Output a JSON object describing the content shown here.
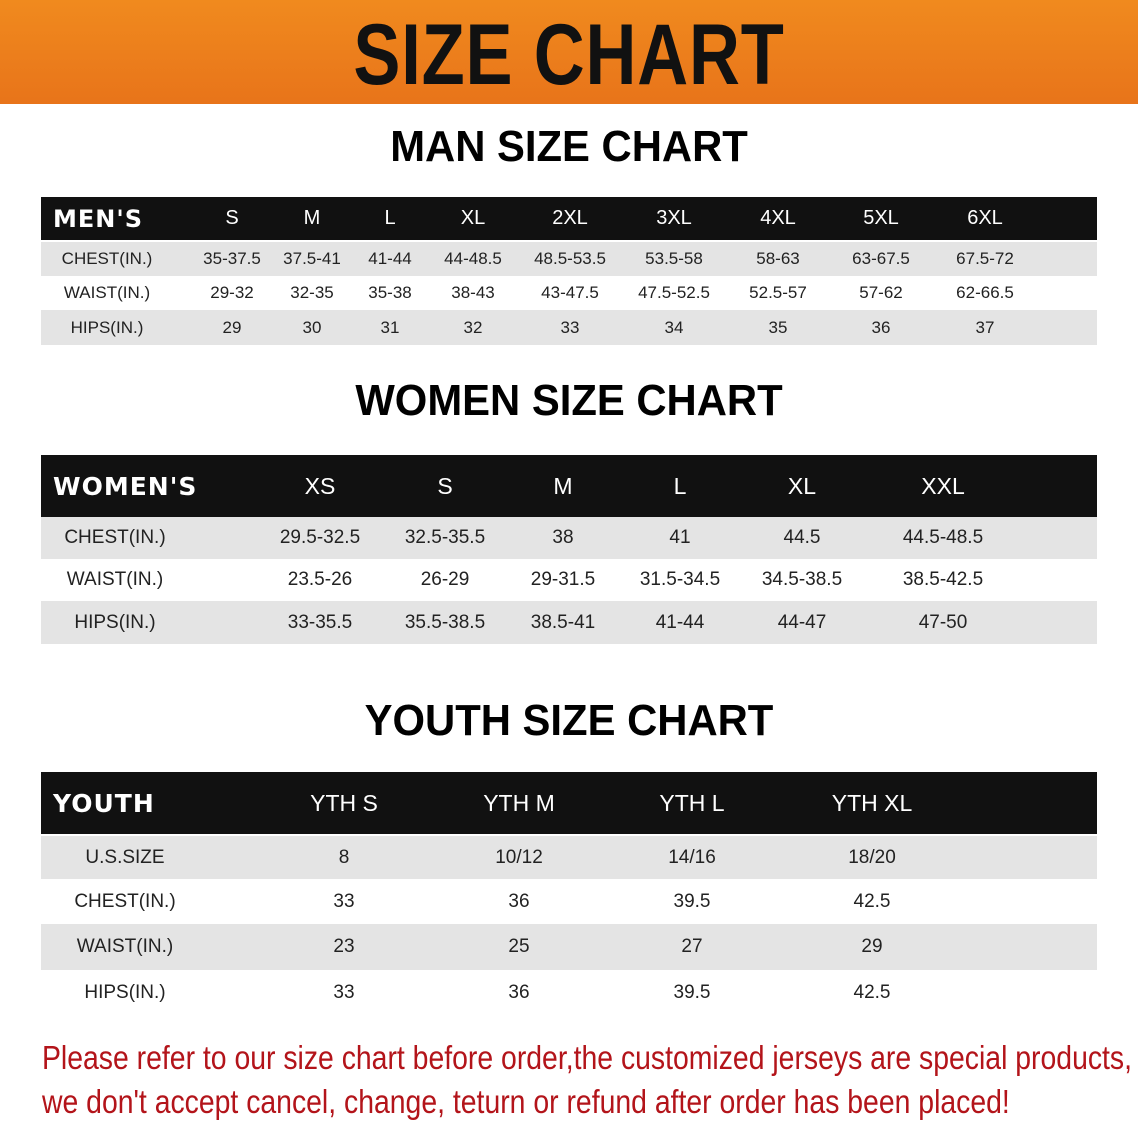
{
  "banner": {
    "title": "SIZE CHART",
    "color": "#ec7d1c"
  },
  "men": {
    "title": "MAN SIZE CHART",
    "header": [
      "MEN'S",
      "S",
      "M",
      "L",
      "XL",
      "2XL",
      "3XL",
      "4XL",
      "5XL",
      "6XL"
    ],
    "rows": [
      [
        "CHEST(IN.)",
        "35-37.5",
        "37.5-41",
        "41-44",
        "44-48.5",
        "48.5-53.5",
        "53.5-58",
        "58-63",
        "63-67.5",
        "67.5-72"
      ],
      [
        "WAIST(IN.)",
        "29-32",
        "32-35",
        "35-38",
        "38-43",
        "43-47.5",
        "47.5-52.5",
        "52.5-57",
        "57-62",
        "62-66.5"
      ],
      [
        "HIPS(IN.)",
        "29",
        "30",
        "31",
        "32",
        "33",
        "34",
        "35",
        "36",
        "37"
      ]
    ]
  },
  "women": {
    "title": "WOMEN SIZE CHART",
    "header": [
      "WOMEN'S",
      "XS",
      "S",
      "M",
      "L",
      "XL",
      "XXL"
    ],
    "rows": [
      [
        "CHEST(IN.)",
        "29.5-32.5",
        "32.5-35.5",
        "38",
        "41",
        "44.5",
        "44.5-48.5"
      ],
      [
        "WAIST(IN.)",
        "23.5-26",
        "26-29",
        "29-31.5",
        "31.5-34.5",
        "34.5-38.5",
        "38.5-42.5"
      ],
      [
        "HIPS(IN.)",
        "33-35.5",
        "35.5-38.5",
        "38.5-41",
        "41-44",
        "44-47",
        "47-50"
      ]
    ]
  },
  "youth": {
    "title": "YOUTH SIZE CHART",
    "header": [
      "YOUTH",
      "YTH S",
      "YTH M",
      "YTH L",
      "YTH XL"
    ],
    "rows": [
      [
        "U.S.SIZE",
        "8",
        "10/12",
        "14/16",
        "18/20"
      ],
      [
        "CHEST(IN.)",
        "33",
        "36",
        "39.5",
        "42.5"
      ],
      [
        "WAIST(IN.)",
        "23",
        "25",
        "27",
        "29"
      ],
      [
        "HIPS(IN.)",
        "33",
        "36",
        "39.5",
        "42.5"
      ]
    ]
  },
  "note": {
    "line1": "Please refer to our size chart before order,the customized jerseys are special products,",
    "line2": "we don't accept cancel, change, teturn or refund after order has been placed!",
    "color": "#b3141a"
  }
}
